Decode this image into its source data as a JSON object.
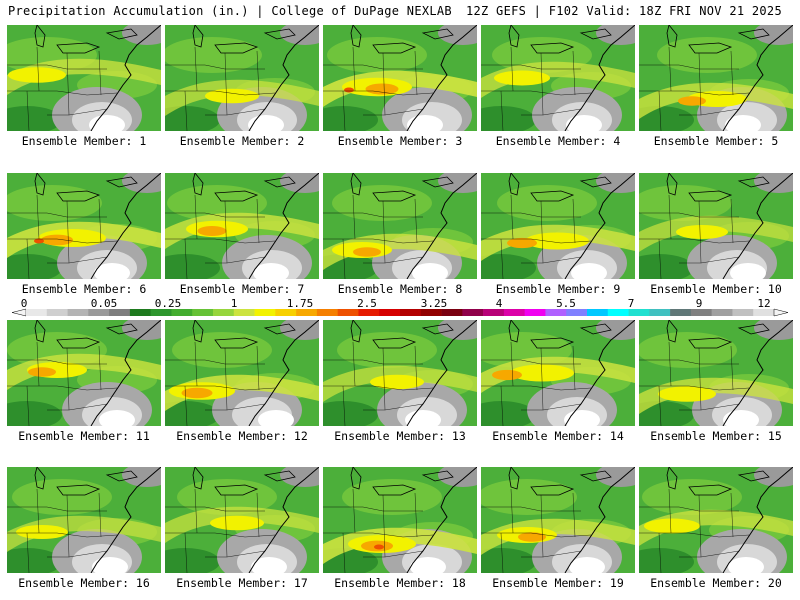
{
  "header": {
    "left": "Precipitation Accumulation (in.) | College of DuPage NEXLAB",
    "right": "12Z GEFS | F102 Valid: 18Z FRI NOV 21 2025"
  },
  "members": [
    {
      "label": "Ensemble Member: 1",
      "intensity": 0.55
    },
    {
      "label": "Ensemble Member: 2",
      "intensity": 0.45
    },
    {
      "label": "Ensemble Member: 3",
      "intensity": 0.85
    },
    {
      "label": "Ensemble Member: 4",
      "intensity": 0.5
    },
    {
      "label": "Ensemble Member: 5",
      "intensity": 0.6
    },
    {
      "label": "Ensemble Member: 6",
      "intensity": 0.8
    },
    {
      "label": "Ensemble Member: 7",
      "intensity": 0.65
    },
    {
      "label": "Ensemble Member: 8",
      "intensity": 0.6
    },
    {
      "label": "Ensemble Member: 9",
      "intensity": 0.7
    },
    {
      "label": "Ensemble Member: 10",
      "intensity": 0.4
    },
    {
      "label": "Ensemble Member: 11",
      "intensity": 0.6
    },
    {
      "label": "Ensemble Member: 12",
      "intensity": 0.75
    },
    {
      "label": "Ensemble Member: 13",
      "intensity": 0.45
    },
    {
      "label": "Ensemble Member: 14",
      "intensity": 0.7
    },
    {
      "label": "Ensemble Member: 15",
      "intensity": 0.55
    },
    {
      "label": "Ensemble Member: 16",
      "intensity": 0.4
    },
    {
      "label": "Ensemble Member: 17",
      "intensity": 0.45
    },
    {
      "label": "Ensemble Member: 18",
      "intensity": 0.8
    },
    {
      "label": "Ensemble Member: 19",
      "intensity": 0.6
    },
    {
      "label": "Ensemble Member: 20",
      "intensity": 0.5
    }
  ],
  "colorbar": {
    "tick_labels": [
      "0",
      "0.05",
      "0.25",
      "1",
      "1.75",
      "2.5",
      "3.25",
      "4",
      "5.5",
      "7",
      "9",
      "12"
    ],
    "colors": [
      "#e8e8e8",
      "#cfcfcf",
      "#b4b4b4",
      "#9a9a9a",
      "#7e7e7e",
      "#1e7a1e",
      "#2d962d",
      "#43ad2f",
      "#66c236",
      "#96d53c",
      "#cce33f",
      "#f2f200",
      "#f7d000",
      "#f7a800",
      "#f57f00",
      "#ee5000",
      "#e61a00",
      "#d60000",
      "#b30000",
      "#920000",
      "#7a0010",
      "#90004a",
      "#b80078",
      "#dc00a8",
      "#f000f0",
      "#b060ff",
      "#8080ff",
      "#00c8ff",
      "#00ffff",
      "#20e0d0",
      "#40c0c0",
      "#607878",
      "#808080",
      "#a0a0a0",
      "#c0c0c0",
      "#e0e0e0"
    ]
  }
}
